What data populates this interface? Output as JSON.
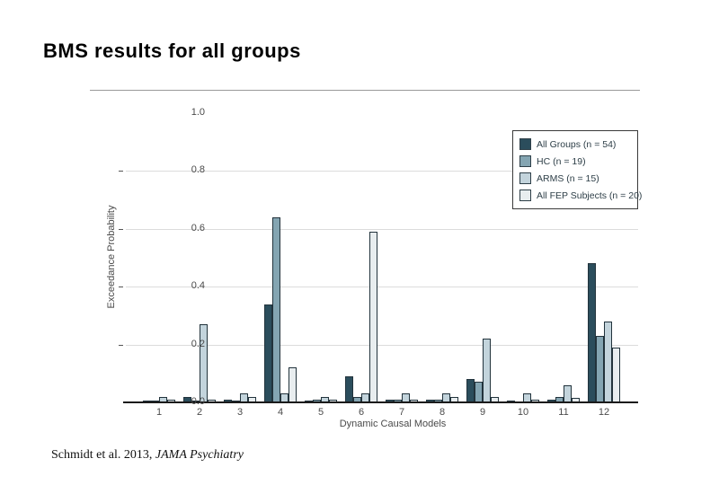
{
  "slide": {
    "title": "BMS results for all groups",
    "footer": {
      "text": "Schmidt et al. 2013, ",
      "italic": "JAMA Psychiatry"
    }
  },
  "chart_data": {
    "type": "bar",
    "title": "",
    "xlabel": "Dynamic Causal Models",
    "ylabel": "Exceedance Probability",
    "ylim": [
      0,
      1.0
    ],
    "yticks": [
      0.0,
      0.2,
      0.4,
      0.6,
      0.8,
      1.0
    ],
    "gridlines_at": [
      0.2,
      0.4,
      0.6,
      0.8
    ],
    "grid": true,
    "legend_position": "top-right-inside",
    "categories": [
      "1",
      "2",
      "3",
      "4",
      "5",
      "6",
      "7",
      "8",
      "9",
      "10",
      "11",
      "12"
    ],
    "series": [
      {
        "name": "All Groups (n = 54)",
        "color": "#2b4d5c",
        "values": [
          0.005,
          0.02,
          0.01,
          0.34,
          0.005,
          0.09,
          0.01,
          0.01,
          0.08,
          0.005,
          0.01,
          0.48
        ]
      },
      {
        "name": "HC (n = 19)",
        "color": "#84a5b2",
        "values": [
          0.005,
          0.005,
          0.005,
          0.64,
          0.01,
          0.02,
          0.01,
          0.01,
          0.07,
          0.003,
          0.02,
          0.23
        ]
      },
      {
        "name": "ARMS (n = 15)",
        "color": "#c3d4dc",
        "values": [
          0.02,
          0.27,
          0.03,
          0.03,
          0.02,
          0.03,
          0.03,
          0.03,
          0.22,
          0.03,
          0.06,
          0.28
        ]
      },
      {
        "name": "All FEP Subjects (n = 20)",
        "color": "#e8edef",
        "values": [
          0.01,
          0.01,
          0.02,
          0.12,
          0.01,
          0.59,
          0.01,
          0.02,
          0.02,
          0.01,
          0.015,
          0.19
        ]
      }
    ]
  }
}
